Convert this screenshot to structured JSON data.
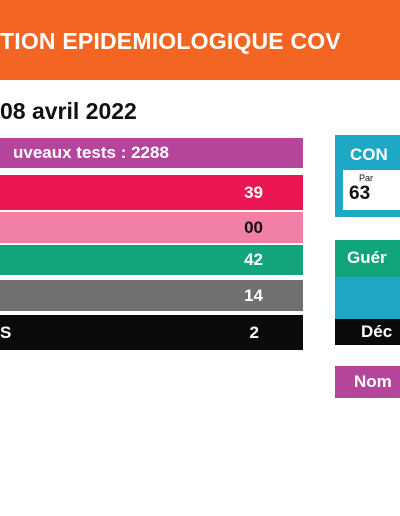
{
  "header": {
    "title": "TION EPIDEMIOLOGIQUE COV"
  },
  "date_line": "08 avril 2022",
  "bars": [
    {
      "label": "uveaux tests : 2288",
      "value": ""
    },
    {
      "label": "",
      "value": "39"
    },
    {
      "label": "",
      "value": "00"
    },
    {
      "label": "",
      "value": "42"
    },
    {
      "label": "",
      "value": "14"
    },
    {
      "label": "S",
      "value": "2"
    }
  ],
  "panel_top": {
    "title": "CON",
    "small_text": "Par",
    "number": "63"
  },
  "panel_mid": {
    "green_label": "Guér",
    "black_label": "Déc"
  },
  "panel_nom": {
    "label": "Nom"
  },
  "colors": {
    "orange": "#f26522",
    "purple": "#b5449b",
    "red": "#ec1653",
    "pink": "#f27fa6",
    "green": "#12a47a",
    "grey": "#707070",
    "black": "#0b0b0b",
    "teal": "#1fa8c6"
  }
}
